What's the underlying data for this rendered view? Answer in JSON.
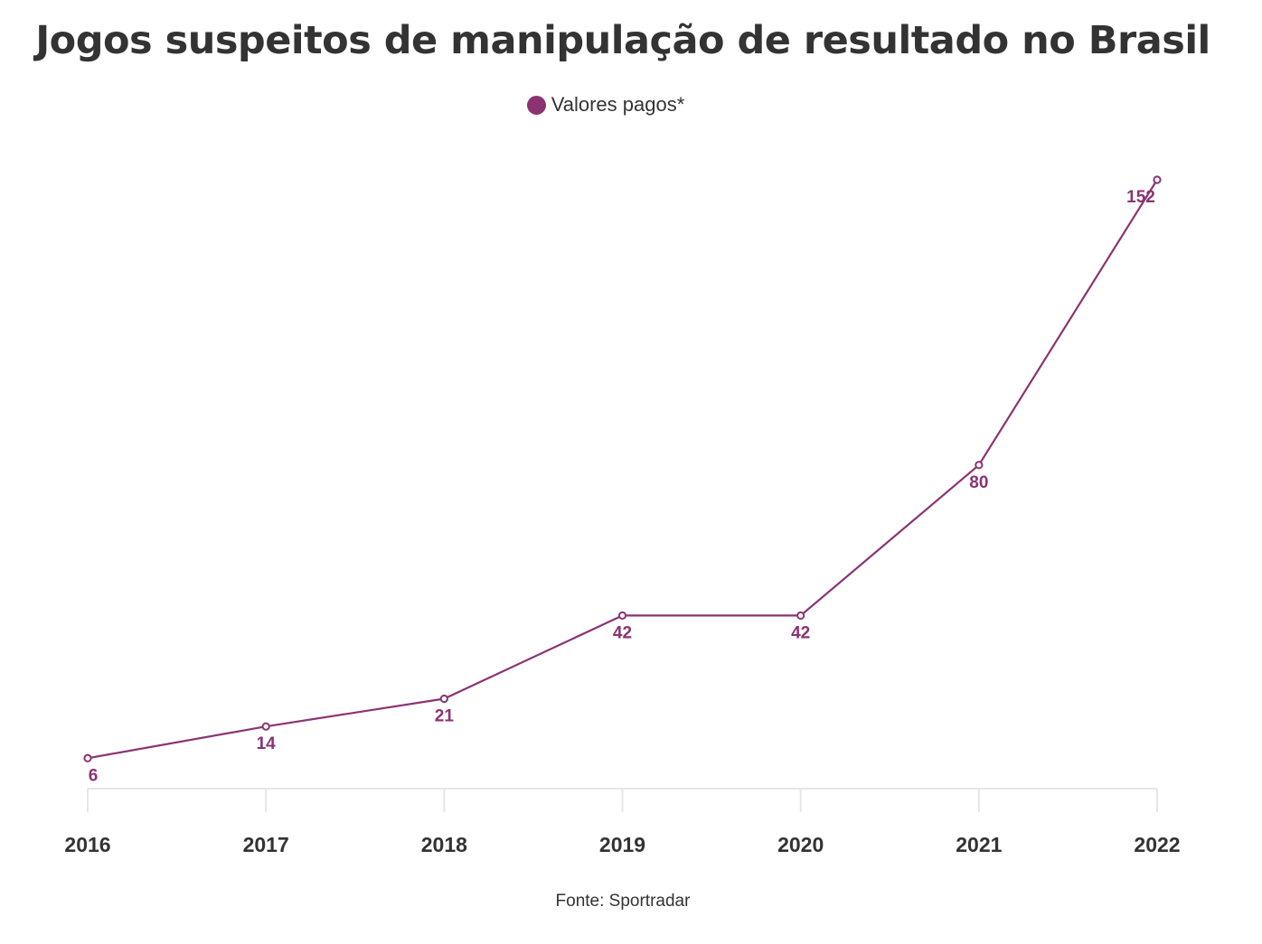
{
  "chart_data": {
    "type": "line",
    "title": "Jogos suspeitos de manipulação de resultado no Brasil",
    "x": [
      "2016",
      "2017",
      "2018",
      "2019",
      "2020",
      "2021",
      "2022"
    ],
    "series": [
      {
        "name": "Valores pagos*",
        "values": [
          6,
          14,
          21,
          42,
          42,
          80,
          152
        ],
        "color": "#8b3372"
      }
    ],
    "data_labels": [
      "6",
      "14",
      "21",
      "42",
      "42",
      "80",
      "152"
    ],
    "ylim": [
      0,
      152
    ],
    "grid": false,
    "legend": "top-center",
    "source": "Fonte: Sportradar"
  },
  "colors": {
    "series": "#8b3372",
    "axis": "#e6e6e6",
    "text": "#333333"
  }
}
